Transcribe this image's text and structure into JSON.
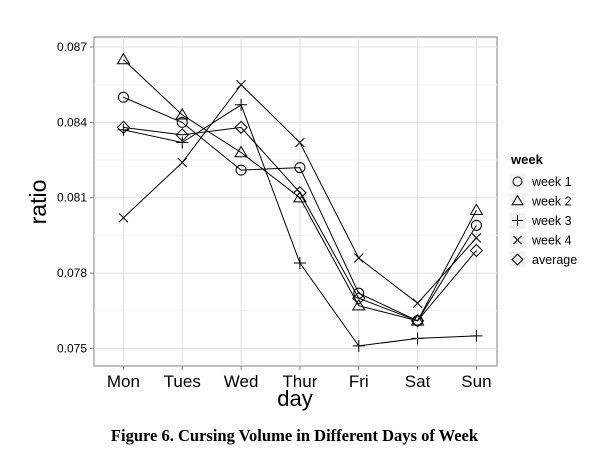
{
  "caption": "Figure 6. Cursing Volume in Different Days of Week",
  "chart_data": {
    "type": "line",
    "xlabel": "day",
    "ylabel": "ratio",
    "categories": [
      "Mon",
      "Tues",
      "Wed",
      "Thur",
      "Fri",
      "Sat",
      "Sun"
    ],
    "ylim": [
      0.0743,
      0.0874
    ],
    "yticks": [
      0.075,
      0.078,
      0.081,
      0.084,
      0.087
    ],
    "ytick_labels": [
      "0.075",
      "0.078",
      "0.081",
      "0.084",
      "0.087"
    ],
    "grid": true,
    "legend": {
      "title": "week",
      "position": "right"
    },
    "series": [
      {
        "name": "week 1",
        "marker": "circle",
        "values": [
          0.085,
          0.084,
          0.0821,
          0.0822,
          0.0772,
          0.0761,
          0.0799
        ]
      },
      {
        "name": "week 2",
        "marker": "triangle",
        "values": [
          0.0865,
          0.0843,
          0.0828,
          0.081,
          0.0767,
          0.0761,
          0.0805
        ]
      },
      {
        "name": "week 3",
        "marker": "plus",
        "values": [
          0.0837,
          0.0832,
          0.0847,
          0.0784,
          0.0751,
          0.0754,
          0.0755
        ]
      },
      {
        "name": "week 4",
        "marker": "x",
        "values": [
          0.0802,
          0.0824,
          0.0855,
          0.0832,
          0.0786,
          0.0768,
          0.0794
        ]
      },
      {
        "name": "average",
        "marker": "diamond",
        "values": [
          0.0838,
          0.0835,
          0.0838,
          0.0812,
          0.077,
          0.0761,
          0.0789
        ]
      }
    ]
  }
}
